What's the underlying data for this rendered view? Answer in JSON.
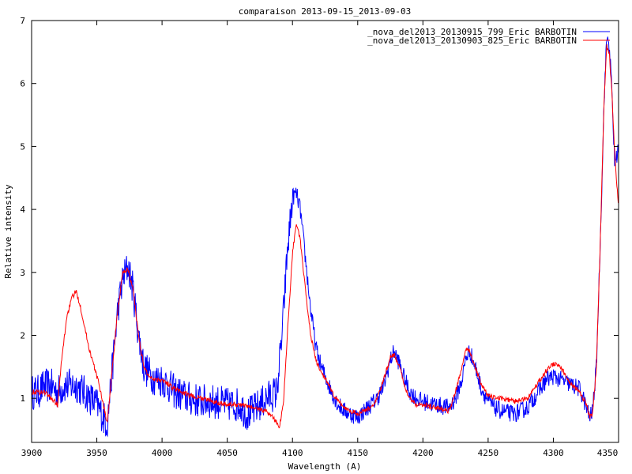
{
  "chart_data": {
    "type": "line",
    "title": "comparaison 2013-09-15_2013-09-03",
    "xlabel": "Wavelength (A)",
    "ylabel": "Relative intensity",
    "xlim": [
      3900,
      4350
    ],
    "ylim": [
      0.3,
      7
    ],
    "xticks": [
      3900,
      3950,
      4000,
      4050,
      4100,
      4150,
      4200,
      4250,
      4300,
      4350
    ],
    "yticks": [
      1,
      2,
      3,
      4,
      5,
      6,
      7
    ],
    "grid": false,
    "legend_position": "top-right",
    "series": [
      {
        "name": "_nova_del2013_20130915_799_Eric BARBOTIN",
        "color": "#0000ff",
        "noise": 0.14,
        "x": [
          3900,
          3905,
          3910,
          3915,
          3920,
          3925,
          3930,
          3935,
          3940,
          3945,
          3950,
          3955,
          3958,
          3962,
          3966,
          3970,
          3974,
          3978,
          3982,
          3986,
          3990,
          3995,
          4000,
          4005,
          4010,
          4020,
          4030,
          4040,
          4050,
          4060,
          4065,
          4070,
          4080,
          4088,
          4092,
          4096,
          4100,
          4103,
          4106,
          4110,
          4114,
          4118,
          4122,
          4126,
          4130,
          4135,
          4140,
          4145,
          4150,
          4155,
          4160,
          4165,
          4170,
          4175,
          4178,
          4182,
          4186,
          4190,
          4195,
          4200,
          4210,
          4220,
          4225,
          4230,
          4233,
          4236,
          4240,
          4245,
          4250,
          4255,
          4260,
          4270,
          4280,
          4290,
          4295,
          4300,
          4305,
          4310,
          4315,
          4320,
          4323,
          4326,
          4328,
          4330,
          4333,
          4336,
          4339,
          4341,
          4343,
          4345,
          4347,
          4350
        ],
        "y": [
          1.1,
          1.1,
          1.2,
          1.2,
          1.1,
          1.2,
          1.2,
          1.2,
          1.1,
          1.0,
          0.9,
          0.7,
          0.6,
          1.5,
          2.4,
          2.9,
          3.1,
          2.7,
          2.0,
          1.5,
          1.4,
          1.3,
          1.3,
          1.2,
          1.1,
          1.0,
          0.95,
          0.95,
          0.9,
          0.9,
          0.75,
          0.8,
          1.0,
          1.1,
          2.0,
          3.3,
          4.2,
          4.25,
          4.0,
          3.2,
          2.4,
          1.8,
          1.5,
          1.3,
          1.1,
          0.9,
          0.8,
          0.75,
          0.7,
          0.8,
          0.9,
          1.0,
          1.2,
          1.6,
          1.75,
          1.55,
          1.3,
          1.1,
          1.0,
          0.95,
          0.9,
          0.85,
          1.0,
          1.3,
          1.65,
          1.75,
          1.5,
          1.15,
          0.95,
          0.85,
          0.8,
          0.75,
          0.85,
          1.15,
          1.3,
          1.35,
          1.3,
          1.25,
          1.2,
          1.15,
          1.0,
          0.8,
          0.7,
          0.8,
          1.5,
          3.5,
          5.8,
          6.75,
          6.6,
          5.8,
          4.7,
          5.0
        ]
      },
      {
        "name": "_nova_del2013_20130903_825_Eric BARBOTIN",
        "color": "#ff0000",
        "noise": 0.04,
        "x": [
          3900,
          3905,
          3910,
          3915,
          3920,
          3923,
          3927,
          3931,
          3934,
          3937,
          3940,
          3944,
          3948,
          3952,
          3956,
          3958,
          3962,
          3966,
          3970,
          3974,
          3978,
          3982,
          3986,
          3990,
          3995,
          4000,
          4010,
          4020,
          4030,
          4040,
          4050,
          4060,
          4070,
          4080,
          4085,
          4090,
          4093,
          4096,
          4100,
          4103,
          4106,
          4110,
          4114,
          4118,
          4122,
          4126,
          4130,
          4135,
          4140,
          4145,
          4150,
          4155,
          4160,
          4165,
          4170,
          4175,
          4178,
          4182,
          4186,
          4190,
          4195,
          4200,
          4210,
          4220,
          4225,
          4230,
          4233,
          4236,
          4240,
          4245,
          4250,
          4255,
          4260,
          4270,
          4280,
          4290,
          4295,
          4300,
          4305,
          4310,
          4315,
          4320,
          4323,
          4326,
          4328,
          4330,
          4333,
          4336,
          4339,
          4341,
          4343,
          4345,
          4347,
          4350
        ],
        "y": [
          1.1,
          1.1,
          1.1,
          1.0,
          0.9,
          1.6,
          2.3,
          2.6,
          2.7,
          2.5,
          2.2,
          1.8,
          1.5,
          1.2,
          0.8,
          0.6,
          1.5,
          2.4,
          3.0,
          3.05,
          2.7,
          2.0,
          1.5,
          1.35,
          1.3,
          1.3,
          1.15,
          1.05,
          1.0,
          0.95,
          0.9,
          0.9,
          0.85,
          0.8,
          0.7,
          0.55,
          0.9,
          2.0,
          3.3,
          3.8,
          3.5,
          2.7,
          2.0,
          1.6,
          1.4,
          1.3,
          1.1,
          0.95,
          0.85,
          0.8,
          0.75,
          0.8,
          0.85,
          1.0,
          1.3,
          1.65,
          1.7,
          1.5,
          1.2,
          1.0,
          0.9,
          0.9,
          0.85,
          0.8,
          1.1,
          1.5,
          1.8,
          1.75,
          1.5,
          1.2,
          1.05,
          1.0,
          1.0,
          0.95,
          1.0,
          1.3,
          1.45,
          1.55,
          1.5,
          1.35,
          1.2,
          1.1,
          1.0,
          0.85,
          0.7,
          0.75,
          1.5,
          3.5,
          5.8,
          6.6,
          6.45,
          5.8,
          4.9,
          4.0
        ]
      }
    ]
  }
}
